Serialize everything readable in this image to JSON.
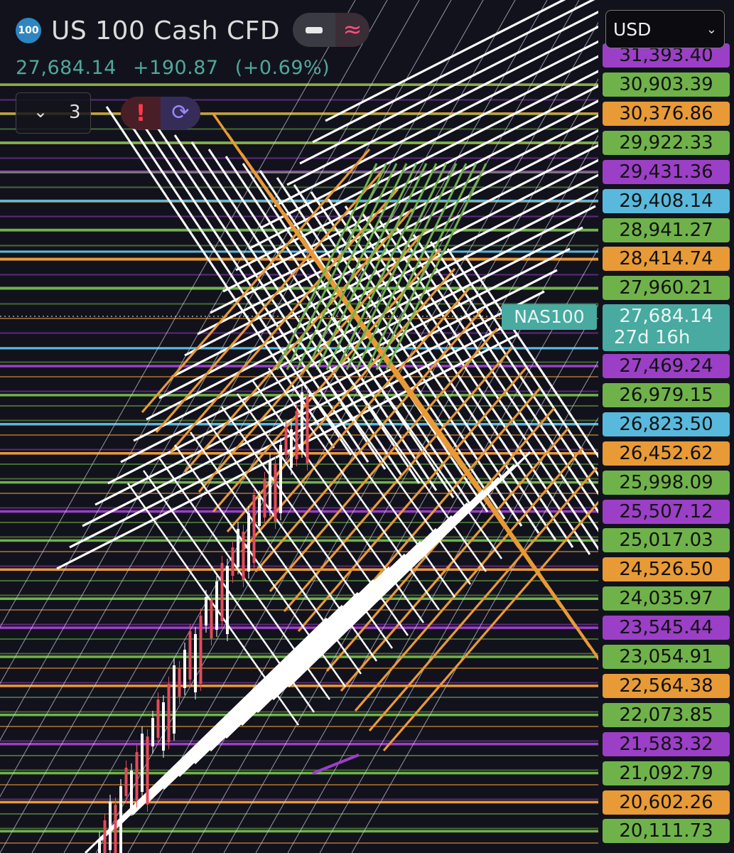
{
  "header": {
    "badge": "100",
    "title": "US 100 Cash CFD",
    "last_price": "27,684.14",
    "change": "+190.87",
    "change_pct": "(+0.69%)",
    "indicators_count": "3",
    "wave_symbol": "≈"
  },
  "currency": {
    "selected": "USD"
  },
  "symbol_label": "NAS100",
  "colors": {
    "purple": "#9b3fc7",
    "green": "#6fb24a",
    "orange": "#e89a36",
    "blue": "#58b9dd",
    "teal": "#48aaa0",
    "background": "#12121c"
  },
  "price_axis": {
    "partial_top": "31,393.40",
    "levels": [
      {
        "value": "30,903.39",
        "color": "green"
      },
      {
        "value": "30,376.86",
        "color": "orange"
      },
      {
        "value": "29,922.33",
        "color": "green"
      },
      {
        "value": "29,431.36",
        "color": "purple"
      },
      {
        "value": "29,408.14",
        "color": "blue"
      },
      {
        "value": "28,941.27",
        "color": "green"
      },
      {
        "value": "28,414.74",
        "color": "orange"
      },
      {
        "value": "27,960.21",
        "color": "green"
      },
      {
        "value": "27,469.24",
        "color": "purple"
      },
      {
        "value": "26,979.15",
        "color": "green"
      },
      {
        "value": "26,823.50",
        "color": "blue"
      },
      {
        "value": "26,452.62",
        "color": "orange"
      },
      {
        "value": "25,998.09",
        "color": "green"
      },
      {
        "value": "25,507.12",
        "color": "purple"
      },
      {
        "value": "25,017.03",
        "color": "green"
      },
      {
        "value": "24,526.50",
        "color": "orange"
      },
      {
        "value": "24,035.97",
        "color": "green"
      },
      {
        "value": "23,545.44",
        "color": "purple"
      },
      {
        "value": "23,054.91",
        "color": "green"
      },
      {
        "value": "22,564.38",
        "color": "orange"
      },
      {
        "value": "22,073.85",
        "color": "green"
      },
      {
        "value": "21,583.32",
        "color": "purple"
      },
      {
        "value": "21,092.79",
        "color": "green"
      },
      {
        "value": "20,602.26",
        "color": "orange"
      },
      {
        "value": "20,111.73",
        "color": "green"
      }
    ],
    "current": {
      "value": "27,684.14",
      "countdown": "27d 16h"
    }
  }
}
